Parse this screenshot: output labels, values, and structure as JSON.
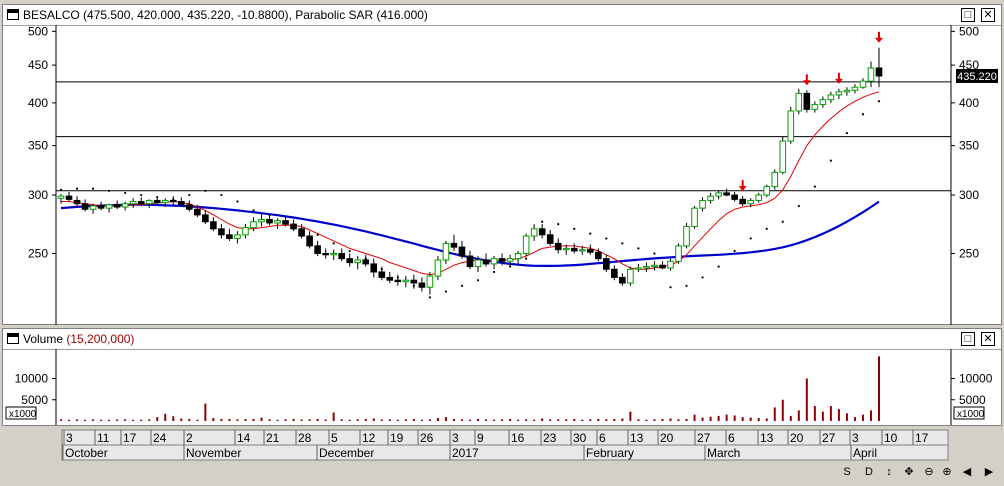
{
  "price_pane": {
    "title": "BESALCO (475.500, 420.000, 435.220, -10.8800), Parabolic SAR (416.000)",
    "last_price_label": "435.220"
  },
  "volume_pane": {
    "title_prefix": "Volume",
    "title_value": "(15,200,000)",
    "scale_label": "x1000"
  },
  "window_buttons": {
    "restore": "□",
    "close": "✕"
  },
  "colors": {
    "up": "#00a000",
    "down": "#000000",
    "ma_fast": "#e00000",
    "ma_slow": "#0000cc",
    "sar": "#000000",
    "signal": "#e00000",
    "volume": "#8b0000"
  },
  "chart_data": [
    {
      "type": "candlestick",
      "ylim": [
        200,
        510
      ],
      "y_ticks": [
        250,
        300,
        350,
        400,
        450,
        500
      ],
      "horizontal_levels": [
        304,
        360,
        427
      ],
      "candles": [
        {
          "o": 297,
          "h": 301,
          "l": 292,
          "c": 299
        },
        {
          "o": 299,
          "h": 303,
          "l": 294,
          "c": 296
        },
        {
          "o": 295,
          "h": 299,
          "l": 289,
          "c": 292
        },
        {
          "o": 292,
          "h": 296,
          "l": 285,
          "c": 287
        },
        {
          "o": 287,
          "h": 292,
          "l": 283,
          "c": 290
        },
        {
          "o": 290,
          "h": 294,
          "l": 286,
          "c": 288
        },
        {
          "o": 288,
          "h": 292,
          "l": 284,
          "c": 291
        },
        {
          "o": 291,
          "h": 295,
          "l": 287,
          "c": 289
        },
        {
          "o": 289,
          "h": 294,
          "l": 286,
          "c": 292
        },
        {
          "o": 292,
          "h": 297,
          "l": 288,
          "c": 294
        },
        {
          "o": 294,
          "h": 298,
          "l": 290,
          "c": 292
        },
        {
          "o": 292,
          "h": 296,
          "l": 288,
          "c": 295
        },
        {
          "o": 295,
          "h": 299,
          "l": 291,
          "c": 293
        },
        {
          "o": 293,
          "h": 297,
          "l": 289,
          "c": 295
        },
        {
          "o": 295,
          "h": 299,
          "l": 291,
          "c": 294
        },
        {
          "o": 294,
          "h": 298,
          "l": 289,
          "c": 291
        },
        {
          "o": 291,
          "h": 295,
          "l": 285,
          "c": 287
        },
        {
          "o": 287,
          "h": 291,
          "l": 280,
          "c": 282
        },
        {
          "o": 282,
          "h": 286,
          "l": 274,
          "c": 276
        },
        {
          "o": 276,
          "h": 280,
          "l": 268,
          "c": 270
        },
        {
          "o": 270,
          "h": 274,
          "l": 262,
          "c": 265
        },
        {
          "o": 265,
          "h": 270,
          "l": 260,
          "c": 262
        },
        {
          "o": 262,
          "h": 268,
          "l": 258,
          "c": 265
        },
        {
          "o": 265,
          "h": 274,
          "l": 262,
          "c": 271
        },
        {
          "o": 271,
          "h": 280,
          "l": 268,
          "c": 276
        },
        {
          "o": 276,
          "h": 283,
          "l": 272,
          "c": 278
        },
        {
          "o": 278,
          "h": 282,
          "l": 273,
          "c": 275
        },
        {
          "o": 275,
          "h": 279,
          "l": 270,
          "c": 277
        },
        {
          "o": 277,
          "h": 281,
          "l": 272,
          "c": 274
        },
        {
          "o": 274,
          "h": 278,
          "l": 268,
          "c": 270
        },
        {
          "o": 270,
          "h": 274,
          "l": 262,
          "c": 264
        },
        {
          "o": 264,
          "h": 268,
          "l": 254,
          "c": 256
        },
        {
          "o": 256,
          "h": 260,
          "l": 248,
          "c": 250
        },
        {
          "o": 250,
          "h": 254,
          "l": 246,
          "c": 249
        },
        {
          "o": 249,
          "h": 253,
          "l": 245,
          "c": 250
        },
        {
          "o": 250,
          "h": 254,
          "l": 244,
          "c": 246
        },
        {
          "o": 246,
          "h": 250,
          "l": 240,
          "c": 243
        },
        {
          "o": 243,
          "h": 248,
          "l": 238,
          "c": 245
        },
        {
          "o": 245,
          "h": 249,
          "l": 240,
          "c": 242
        },
        {
          "o": 242,
          "h": 246,
          "l": 232,
          "c": 236
        },
        {
          "o": 236,
          "h": 240,
          "l": 230,
          "c": 232
        },
        {
          "o": 232,
          "h": 236,
          "l": 228,
          "c": 230
        },
        {
          "o": 230,
          "h": 234,
          "l": 226,
          "c": 229
        },
        {
          "o": 229,
          "h": 233,
          "l": 225,
          "c": 230
        },
        {
          "o": 230,
          "h": 234,
          "l": 224,
          "c": 228
        },
        {
          "o": 228,
          "h": 232,
          "l": 222,
          "c": 225
        },
        {
          "o": 225,
          "h": 236,
          "l": 220,
          "c": 233
        },
        {
          "o": 233,
          "h": 248,
          "l": 230,
          "c": 245
        },
        {
          "o": 245,
          "h": 260,
          "l": 242,
          "c": 258
        },
        {
          "o": 258,
          "h": 265,
          "l": 252,
          "c": 255
        },
        {
          "o": 255,
          "h": 260,
          "l": 246,
          "c": 248
        },
        {
          "o": 248,
          "h": 252,
          "l": 238,
          "c": 240
        },
        {
          "o": 240,
          "h": 248,
          "l": 236,
          "c": 245
        },
        {
          "o": 245,
          "h": 250,
          "l": 240,
          "c": 242
        },
        {
          "o": 242,
          "h": 248,
          "l": 238,
          "c": 246
        },
        {
          "o": 246,
          "h": 250,
          "l": 241,
          "c": 244
        },
        {
          "o": 244,
          "h": 249,
          "l": 240,
          "c": 246
        },
        {
          "o": 246,
          "h": 252,
          "l": 242,
          "c": 250
        },
        {
          "o": 250,
          "h": 266,
          "l": 248,
          "c": 264
        },
        {
          "o": 264,
          "h": 274,
          "l": 260,
          "c": 270
        },
        {
          "o": 270,
          "h": 274,
          "l": 262,
          "c": 265
        },
        {
          "o": 265,
          "h": 269,
          "l": 256,
          "c": 258
        },
        {
          "o": 258,
          "h": 262,
          "l": 250,
          "c": 253
        },
        {
          "o": 253,
          "h": 257,
          "l": 249,
          "c": 254
        },
        {
          "o": 254,
          "h": 258,
          "l": 250,
          "c": 252
        },
        {
          "o": 252,
          "h": 256,
          "l": 249,
          "c": 253
        },
        {
          "o": 253,
          "h": 257,
          "l": 249,
          "c": 251
        },
        {
          "o": 251,
          "h": 254,
          "l": 244,
          "c": 246
        },
        {
          "o": 246,
          "h": 249,
          "l": 236,
          "c": 238
        },
        {
          "o": 238,
          "h": 241,
          "l": 230,
          "c": 232
        },
        {
          "o": 232,
          "h": 235,
          "l": 226,
          "c": 228
        },
        {
          "o": 228,
          "h": 240,
          "l": 226,
          "c": 238
        },
        {
          "o": 238,
          "h": 242,
          "l": 236,
          "c": 239
        },
        {
          "o": 239,
          "h": 243,
          "l": 236,
          "c": 240
        },
        {
          "o": 240,
          "h": 244,
          "l": 237,
          "c": 241
        },
        {
          "o": 241,
          "h": 244,
          "l": 238,
          "c": 239
        },
        {
          "o": 239,
          "h": 246,
          "l": 237,
          "c": 244
        },
        {
          "o": 244,
          "h": 258,
          "l": 242,
          "c": 256
        },
        {
          "o": 256,
          "h": 275,
          "l": 254,
          "c": 272
        },
        {
          "o": 272,
          "h": 290,
          "l": 270,
          "c": 288
        },
        {
          "o": 288,
          "h": 298,
          "l": 285,
          "c": 295
        },
        {
          "o": 295,
          "h": 302,
          "l": 292,
          "c": 299
        },
        {
          "o": 299,
          "h": 304,
          "l": 296,
          "c": 302
        },
        {
          "o": 302,
          "h": 306,
          "l": 299,
          "c": 300
        },
        {
          "o": 300,
          "h": 303,
          "l": 294,
          "c": 296
        },
        {
          "o": 296,
          "h": 299,
          "l": 290,
          "c": 292
        },
        {
          "o": 292,
          "h": 297,
          "l": 289,
          "c": 295
        },
        {
          "o": 295,
          "h": 302,
          "l": 293,
          "c": 300
        },
        {
          "o": 300,
          "h": 310,
          "l": 298,
          "c": 308
        },
        {
          "o": 308,
          "h": 325,
          "l": 305,
          "c": 322
        },
        {
          "o": 322,
          "h": 360,
          "l": 320,
          "c": 355
        },
        {
          "o": 355,
          "h": 395,
          "l": 352,
          "c": 390
        },
        {
          "o": 390,
          "h": 418,
          "l": 386,
          "c": 412
        },
        {
          "o": 412,
          "h": 416,
          "l": 388,
          "c": 392
        },
        {
          "o": 392,
          "h": 402,
          "l": 388,
          "c": 398
        },
        {
          "o": 398,
          "h": 408,
          "l": 394,
          "c": 404
        },
        {
          "o": 404,
          "h": 414,
          "l": 400,
          "c": 410
        },
        {
          "o": 410,
          "h": 418,
          "l": 405,
          "c": 414
        },
        {
          "o": 414,
          "h": 420,
          "l": 409,
          "c": 416
        },
        {
          "o": 416,
          "h": 424,
          "l": 412,
          "c": 420
        },
        {
          "o": 420,
          "h": 432,
          "l": 418,
          "c": 428
        },
        {
          "o": 428,
          "h": 455,
          "l": 420,
          "c": 446
        },
        {
          "o": 446,
          "h": 475,
          "l": 420,
          "c": 435
        }
      ],
      "ma_fast": [
        294,
        294,
        293,
        292,
        291,
        290,
        290,
        290,
        290,
        291,
        291,
        292,
        293,
        293,
        294,
        293,
        292,
        289,
        286,
        282,
        278,
        274,
        271,
        270,
        270,
        271,
        272,
        273,
        273,
        273,
        272,
        269,
        266,
        263,
        260,
        257,
        254,
        252,
        250,
        248,
        246,
        243,
        241,
        239,
        237,
        235,
        234,
        235,
        238,
        241,
        243,
        244,
        245,
        245,
        245,
        245,
        245,
        246,
        248,
        251,
        254,
        255,
        256,
        256,
        256,
        255,
        254,
        252,
        249,
        246,
        242,
        239,
        238,
        238,
        239,
        240,
        241,
        244,
        249,
        256,
        263,
        270,
        277,
        283,
        287,
        289,
        290,
        291,
        293,
        297,
        305,
        318,
        334,
        350,
        362,
        372,
        381,
        389,
        396,
        402,
        407,
        411,
        414
      ],
      "ma_slow": [
        288,
        288.6,
        289.1,
        289.6,
        290,
        290.3,
        290.6,
        290.8,
        291,
        291.1,
        291.1,
        291,
        290.8,
        290.6,
        290.3,
        290,
        289.6,
        289.1,
        288.6,
        288,
        287.4,
        286.7,
        286,
        285.2,
        284.4,
        283.5,
        282.6,
        281.7,
        280.7,
        279.7,
        278.6,
        277.4,
        276.2,
        274.9,
        273.6,
        272.2,
        270.8,
        269.3,
        267.8,
        266.2,
        264.6,
        262.9,
        261.2,
        259.5,
        257.8,
        256.1,
        254.4,
        252.8,
        251.2,
        249.7,
        248.3,
        247,
        245.8,
        244.7,
        243.7,
        242.8,
        242,
        241.4,
        240.9,
        240.6,
        240.5,
        240.5,
        240.6,
        240.8,
        241.1,
        241.5,
        242,
        242.5,
        243,
        243.6,
        244.2,
        244.7,
        245.2,
        245.7,
        246.2,
        246.6,
        247,
        247.4,
        247.8,
        248.1,
        248.4,
        248.7,
        249,
        249.4,
        249.8,
        250.3,
        250.9,
        251.6,
        252.5,
        253.6,
        254.9,
        256.5,
        258.4,
        260.6,
        263.1,
        265.9,
        269,
        272.4,
        276.1,
        280.1,
        284.4,
        289,
        293.9
      ],
      "sar_dots": [
        [
          0,
          305
        ],
        [
          2,
          306
        ],
        [
          4,
          306
        ],
        [
          6,
          304
        ],
        [
          8,
          302
        ],
        [
          10,
          300
        ],
        [
          12,
          298
        ],
        [
          14,
          296
        ],
        [
          16,
          300
        ],
        [
          18,
          304
        ],
        [
          20,
          300
        ],
        [
          22,
          294
        ],
        [
          24,
          286
        ],
        [
          26,
          282
        ],
        [
          28,
          276
        ],
        [
          30,
          270
        ],
        [
          32,
          265
        ],
        [
          34,
          258
        ],
        [
          36,
          252
        ],
        [
          38,
          246
        ],
        [
          40,
          238
        ],
        [
          42,
          232
        ],
        [
          44,
          226
        ],
        [
          46,
          218
        ],
        [
          48,
          222
        ],
        [
          50,
          226
        ],
        [
          52,
          230
        ],
        [
          54,
          236
        ],
        [
          56,
          240
        ],
        [
          58,
          246
        ],
        [
          60,
          276
        ],
        [
          62,
          274
        ],
        [
          64,
          270
        ],
        [
          66,
          266
        ],
        [
          68,
          262
        ],
        [
          70,
          258
        ],
        [
          72,
          254
        ],
        [
          74,
          250
        ],
        [
          76,
          225
        ],
        [
          78,
          226
        ],
        [
          80,
          232
        ],
        [
          82,
          240
        ],
        [
          84,
          252
        ],
        [
          86,
          262
        ],
        [
          88,
          270
        ],
        [
          90,
          276
        ],
        [
          92,
          290
        ],
        [
          94,
          308
        ],
        [
          96,
          334
        ],
        [
          98,
          364
        ],
        [
          100,
          386
        ],
        [
          102,
          402
        ]
      ],
      "signal_arrows": [
        85,
        93,
        97,
        102
      ]
    },
    {
      "type": "bar",
      "ylim": [
        0,
        16000
      ],
      "y_ticks": [
        5000,
        10000
      ],
      "values": [
        400,
        300,
        350,
        300,
        380,
        320,
        300,
        350,
        400,
        300,
        320,
        380,
        900,
        1700,
        1100,
        600,
        500,
        300,
        4100,
        700,
        500,
        500,
        400,
        450,
        500,
        800,
        400,
        300,
        400,
        500,
        350,
        400,
        500,
        350,
        2000,
        400,
        300,
        400,
        500,
        600,
        350,
        400,
        300,
        400,
        500,
        300,
        400,
        700,
        900,
        500,
        400,
        300,
        500,
        400,
        300,
        400,
        500,
        300,
        400,
        300,
        600,
        400,
        400,
        400,
        500,
        300,
        400,
        500,
        400,
        500,
        600,
        2200,
        400,
        300,
        400,
        500,
        600,
        400,
        500,
        1500,
        800,
        1000,
        1200,
        1500,
        1300,
        900,
        800,
        700,
        600,
        3200,
        5000,
        1200,
        2500,
        10000,
        3500,
        2200,
        3500,
        2800,
        1800,
        900,
        1500,
        2500,
        15200
      ]
    }
  ],
  "time_axis": {
    "day_labels": [
      "3",
      "11",
      "17",
      "24",
      "2",
      "14",
      "21",
      "28",
      "5",
      "12",
      "19",
      "26",
      "3",
      "9",
      "16",
      "23",
      "30",
      "6",
      "13",
      "20",
      "27",
      "6",
      "13",
      "20",
      "27",
      "3",
      "10",
      "17"
    ],
    "month_labels": [
      "October",
      "November",
      "December",
      "2017",
      "February",
      "March",
      "April"
    ]
  },
  "controls": [
    "S",
    "D",
    "↕",
    "✥",
    "⊖",
    "⊕",
    "◀",
    "▶"
  ]
}
